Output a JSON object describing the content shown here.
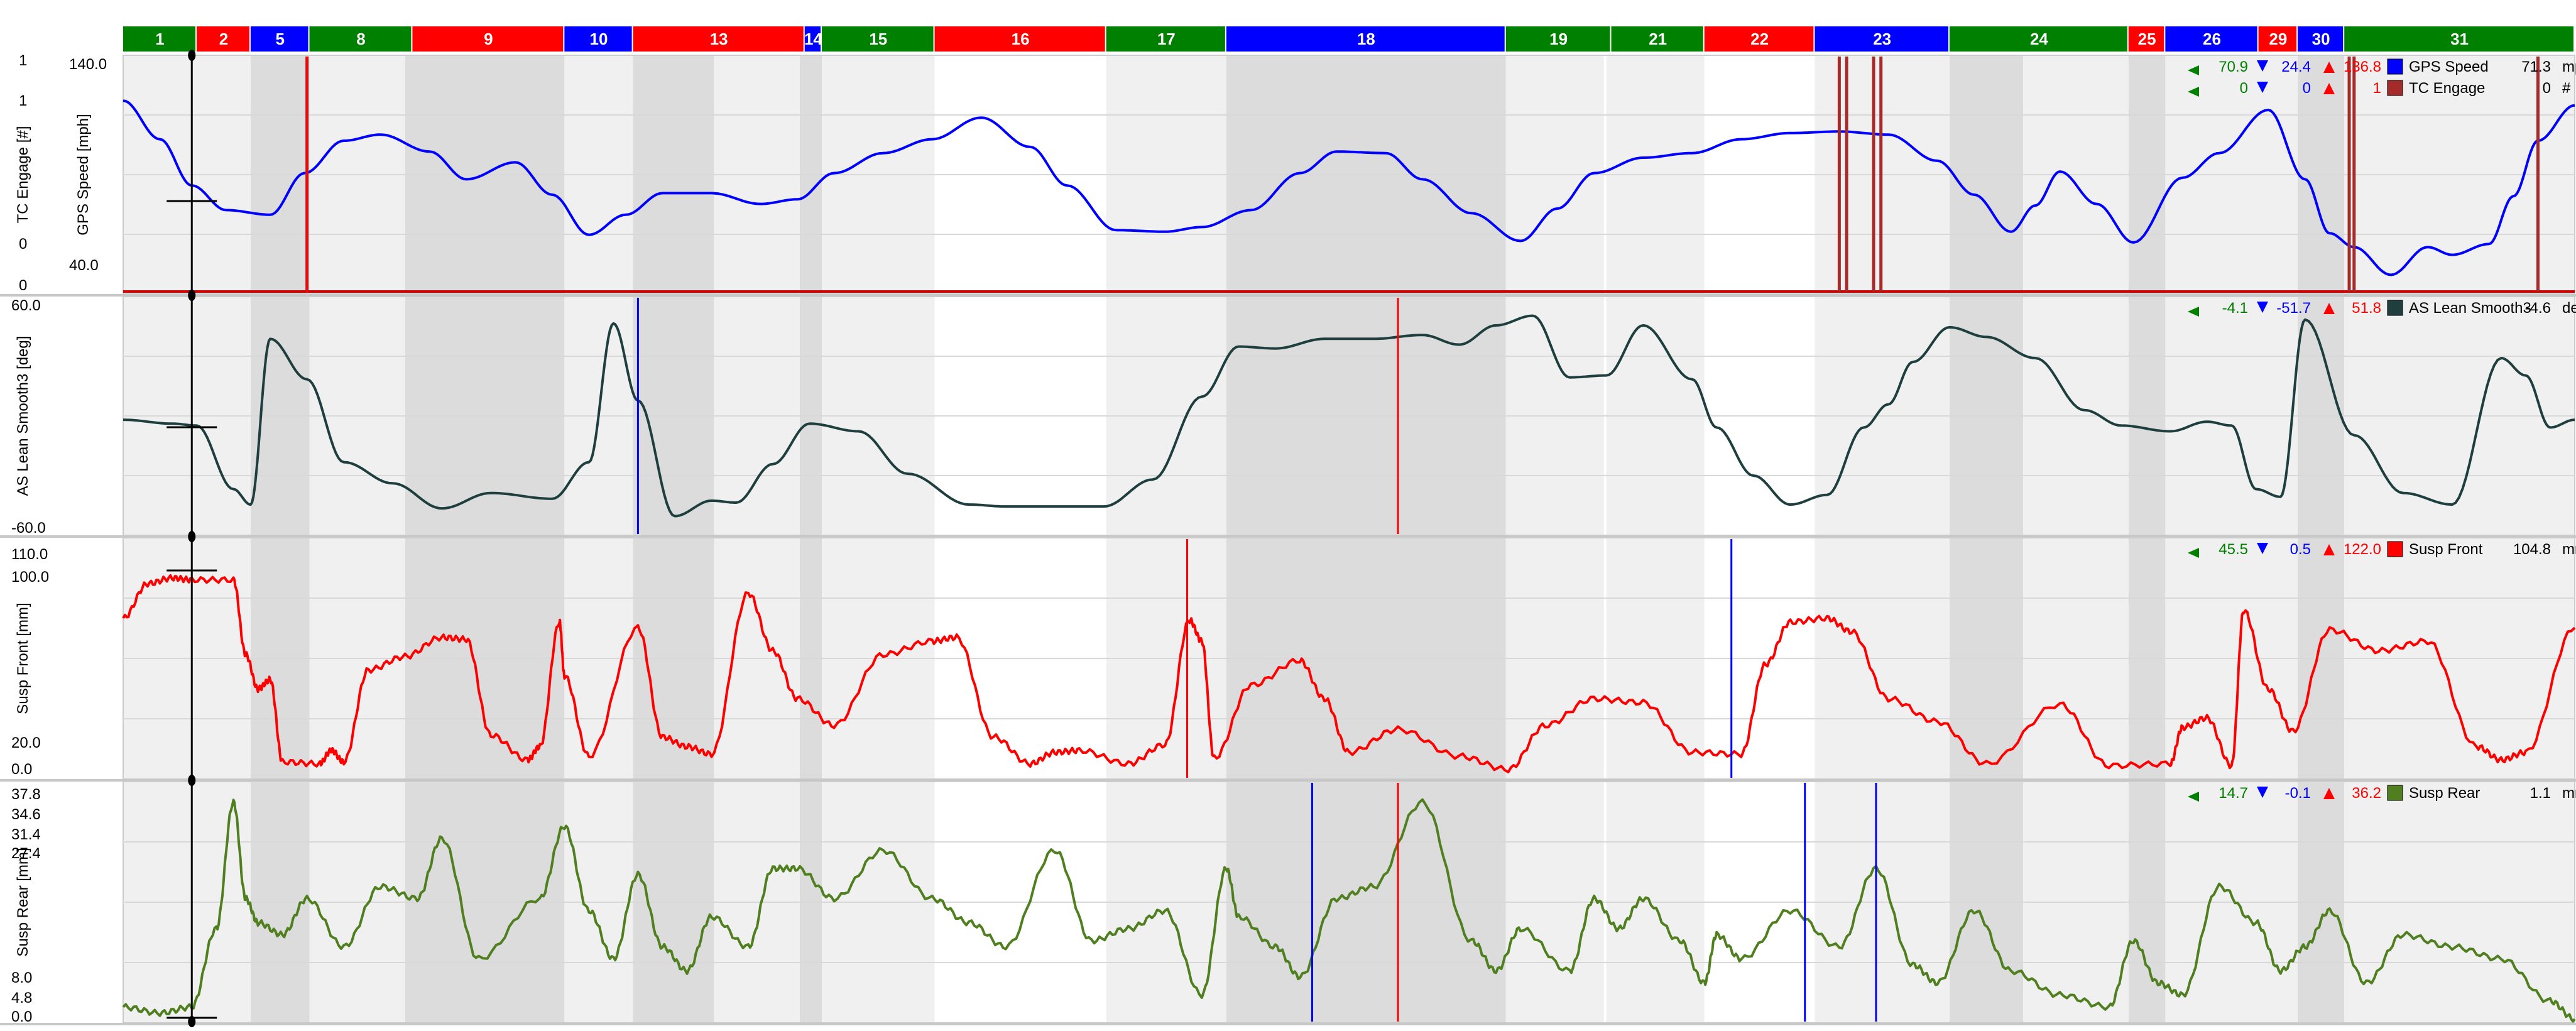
{
  "colors": {
    "green": "#008000",
    "red": "#ff0000",
    "blue": "#0000ff"
  },
  "segments": [
    {
      "label": "1",
      "color": "green"
    },
    {
      "label": "2",
      "color": "red"
    },
    {
      "label": "5",
      "color": "blue"
    },
    {
      "label": "8",
      "color": "green"
    },
    {
      "label": "9",
      "color": "red"
    },
    {
      "label": "10",
      "color": "blue"
    },
    {
      "label": "13",
      "color": "red"
    },
    {
      "label": "14",
      "color": "blue"
    },
    {
      "label": "15",
      "color": "green"
    },
    {
      "label": "16",
      "color": "red"
    },
    {
      "label": "17",
      "color": "green"
    },
    {
      "label": "18",
      "color": "blue"
    },
    {
      "label": "19",
      "color": "green"
    },
    {
      "label": "21",
      "color": "green"
    },
    {
      "label": "22",
      "color": "red"
    },
    {
      "label": "23",
      "color": "blue"
    },
    {
      "label": "24",
      "color": "green"
    },
    {
      "label": "25",
      "color": "red"
    },
    {
      "label": "26",
      "color": "blue"
    },
    {
      "label": "29",
      "color": "red"
    },
    {
      "label": "30",
      "color": "blue"
    },
    {
      "label": "31",
      "color": "green"
    }
  ],
  "chart_data": [
    {
      "type": "line",
      "ylabels": [
        "GPS Speed [mph]",
        "TC Engage [#]"
      ],
      "ticks_left": [
        "1",
        "1",
        "0",
        "0"
      ],
      "ticks_right": [
        "140.0",
        "40.0"
      ],
      "legend": [
        {
          "green": "70.9",
          "blue": "24.4",
          "red": "136.8",
          "color": "#0000ff",
          "name": "GPS Speed",
          "current": "71.3",
          "unit": "mph"
        },
        {
          "green": "0",
          "blue": "0",
          "red": "1",
          "color": "#a52a2a",
          "name": "TC Engage",
          "current": "0",
          "unit": "#"
        }
      ],
      "ylim": [
        0,
        150
      ],
      "x": [
        0,
        0.015,
        0.028,
        0.042,
        0.06,
        0.074,
        0.09,
        0.105,
        0.125,
        0.14,
        0.16,
        0.175,
        0.19,
        0.205,
        0.22,
        0.24,
        0.26,
        0.275,
        0.29,
        0.31,
        0.33,
        0.35,
        0.37,
        0.385,
        0.405,
        0.425,
        0.44,
        0.46,
        0.48,
        0.495,
        0.515,
        0.53,
        0.55,
        0.57,
        0.585,
        0.6,
        0.62,
        0.64,
        0.66,
        0.68,
        0.7,
        0.72,
        0.74,
        0.755,
        0.77,
        0.78,
        0.79,
        0.805,
        0.82,
        0.84,
        0.855,
        0.875,
        0.89,
        0.9,
        0.91,
        0.925,
        0.94,
        0.95,
        0.965,
        0.975,
        0.985,
        1.0
      ],
      "values": [
        123,
        98,
        68,
        52,
        49,
        76,
        97,
        101,
        90,
        72,
        83,
        62,
        36,
        49,
        63,
        63,
        56,
        59,
        76,
        89,
        98,
        112,
        93,
        68,
        39,
        38,
        41,
        52,
        76,
        90,
        89,
        72,
        50,
        32,
        53,
        76,
        86,
        89,
        98,
        102,
        103,
        101,
        84,
        62,
        38,
        55,
        77,
        56,
        31,
        73,
        89,
        117,
        72,
        37,
        28,
        10,
        28,
        23,
        30,
        61,
        97,
        120
      ],
      "series2_events": [
        0.075,
        0.7,
        0.703,
        0.714,
        0.717,
        0.908,
        0.91,
        0.985
      ]
    },
    {
      "type": "line",
      "ylabels": [
        "AS Lean Smooth3 [deg]"
      ],
      "ticks_left": [
        "60.0",
        "-60.0"
      ],
      "legend": [
        {
          "green": "-4.1",
          "blue": "-51.7",
          "red": "51.8",
          "color": "#1f3f3f",
          "name": "AS Lean Smooth3",
          "current": "-4.6",
          "unit": "deg"
        }
      ],
      "ylim": [
        -60,
        60
      ],
      "x": [
        0,
        0.02,
        0.03,
        0.045,
        0.052,
        0.06,
        0.075,
        0.09,
        0.11,
        0.13,
        0.15,
        0.175,
        0.19,
        0.2,
        0.21,
        0.225,
        0.24,
        0.25,
        0.265,
        0.28,
        0.3,
        0.32,
        0.345,
        0.36,
        0.38,
        0.4,
        0.42,
        0.44,
        0.455,
        0.47,
        0.49,
        0.51,
        0.53,
        0.545,
        0.56,
        0.575,
        0.59,
        0.605,
        0.62,
        0.64,
        0.65,
        0.665,
        0.68,
        0.695,
        0.71,
        0.72,
        0.73,
        0.745,
        0.76,
        0.78,
        0.8,
        0.815,
        0.835,
        0.85,
        0.86,
        0.87,
        0.88,
        0.89,
        0.91,
        0.93,
        0.95,
        0.97,
        0.98,
        0.99,
        1.0
      ],
      "values": [
        -2,
        -4,
        -5,
        -38,
        -46,
        40,
        19,
        -24,
        -35,
        -48,
        -40,
        -43,
        -24,
        48,
        8,
        -52,
        -44,
        -45,
        -25,
        -4,
        -8,
        -30,
        -46,
        -47,
        -47,
        -47,
        -33,
        10,
        36,
        35,
        40,
        40,
        42,
        37,
        47,
        52,
        20,
        21,
        47,
        19,
        -6,
        -31,
        -46,
        -41,
        -6,
        6,
        28,
        46,
        41,
        30,
        3,
        -5,
        -8,
        -3,
        -5,
        -38,
        -42,
        50,
        -10,
        -40,
        -46,
        30,
        21,
        -6,
        -2
      ]
    },
    {
      "type": "line",
      "ylabels": [
        "Susp Front [mm]"
      ],
      "ticks_left": [
        "110.0",
        "100.0",
        "20.0",
        "0.0"
      ],
      "legend": [
        {
          "green": "45.5",
          "blue": "0.5",
          "red": "122.0",
          "color": "#ff0000",
          "name": "Susp Front",
          "current": "104.8",
          "unit": "mm"
        }
      ],
      "ylim": [
        0,
        122
      ],
      "x": [
        0,
        0.01,
        0.02,
        0.028,
        0.045,
        0.05,
        0.055,
        0.06,
        0.065,
        0.08,
        0.085,
        0.09,
        0.1,
        0.115,
        0.13,
        0.14,
        0.15,
        0.165,
        0.17,
        0.178,
        0.18,
        0.19,
        0.21,
        0.22,
        0.23,
        0.24,
        0.255,
        0.265,
        0.275,
        0.29,
        0.31,
        0.33,
        0.34,
        0.355,
        0.37,
        0.38,
        0.39,
        0.41,
        0.425,
        0.435,
        0.44,
        0.445,
        0.46,
        0.48,
        0.49,
        0.5,
        0.52,
        0.545,
        0.565,
        0.58,
        0.6,
        0.62,
        0.64,
        0.66,
        0.67,
        0.68,
        0.695,
        0.705,
        0.72,
        0.74,
        0.76,
        0.79,
        0.81,
        0.835,
        0.84,
        0.85,
        0.86,
        0.865,
        0.875,
        0.885,
        0.9,
        0.92,
        0.94,
        0.96,
        0.97,
        0.98,
        1.0
      ],
      "values": [
        82,
        100,
        103,
        102,
        102,
        63,
        45,
        50,
        7,
        6,
        13,
        7,
        55,
        62,
        72,
        71,
        21,
        8,
        15,
        80,
        52,
        10,
        77,
        20,
        15,
        11,
        95,
        65,
        40,
        26,
        63,
        70,
        72,
        20,
        6,
        12,
        13,
        6,
        16,
        81,
        70,
        9,
        47,
        60,
        40,
        12,
        24,
        10,
        3,
        26,
        40,
        38,
        12,
        11,
        58,
        80,
        82,
        75,
        40,
        28,
        6,
        37,
        5,
        6,
        25,
        30,
        5,
        86,
        45,
        23,
        76,
        65,
        70,
        15,
        8,
        12,
        77
      ]
    },
    {
      "type": "line",
      "ylabels": [
        "Susp Rear [mm]"
      ],
      "ticks_left": [
        "37.8",
        "34.6",
        "31.4",
        "27.4",
        "8.0",
        "4.8",
        "0.0"
      ],
      "legend": [
        {
          "green": "14.7",
          "blue": "-0.1",
          "red": "36.2",
          "color": "#4f7f1f",
          "name": "Susp Rear",
          "current": "1.1",
          "unit": "mm"
        }
      ],
      "ylim": [
        0,
        38.8
      ],
      "x": [
        0,
        0.015,
        0.028,
        0.038,
        0.045,
        0.05,
        0.055,
        0.065,
        0.075,
        0.09,
        0.105,
        0.12,
        0.13,
        0.145,
        0.17,
        0.18,
        0.19,
        0.2,
        0.21,
        0.22,
        0.23,
        0.24,
        0.255,
        0.265,
        0.275,
        0.29,
        0.31,
        0.33,
        0.345,
        0.36,
        0.38,
        0.395,
        0.41,
        0.425,
        0.44,
        0.45,
        0.455,
        0.47,
        0.48,
        0.495,
        0.51,
        0.53,
        0.55,
        0.56,
        0.57,
        0.59,
        0.6,
        0.61,
        0.62,
        0.635,
        0.645,
        0.65,
        0.66,
        0.68,
        0.7,
        0.715,
        0.73,
        0.74,
        0.755,
        0.77,
        0.79,
        0.81,
        0.82,
        0.83,
        0.84,
        0.855,
        0.87,
        0.88,
        0.89,
        0.9,
        0.915,
        0.93,
        0.95,
        0.97,
        0.99,
        1.0
      ],
      "values": [
        2,
        1,
        2,
        15,
        36,
        20,
        16,
        14,
        20,
        12,
        22,
        20,
        30,
        10,
        20,
        32,
        18,
        10,
        24,
        12,
        8,
        17,
        12,
        25,
        25,
        20,
        28,
        20,
        16,
        12,
        28,
        13,
        15,
        18,
        4,
        25,
        17,
        12,
        7,
        20,
        22,
        36,
        13,
        8,
        15,
        8,
        20,
        15,
        20,
        13,
        6,
        14,
        10,
        18,
        12,
        25,
        9,
        6,
        18,
        8,
        4,
        2,
        13,
        6,
        4,
        22,
        16,
        8,
        12,
        18,
        6,
        14,
        12,
        10,
        3,
        0
      ],
      "events": [
        0.485,
        0.715
      ]
    }
  ]
}
